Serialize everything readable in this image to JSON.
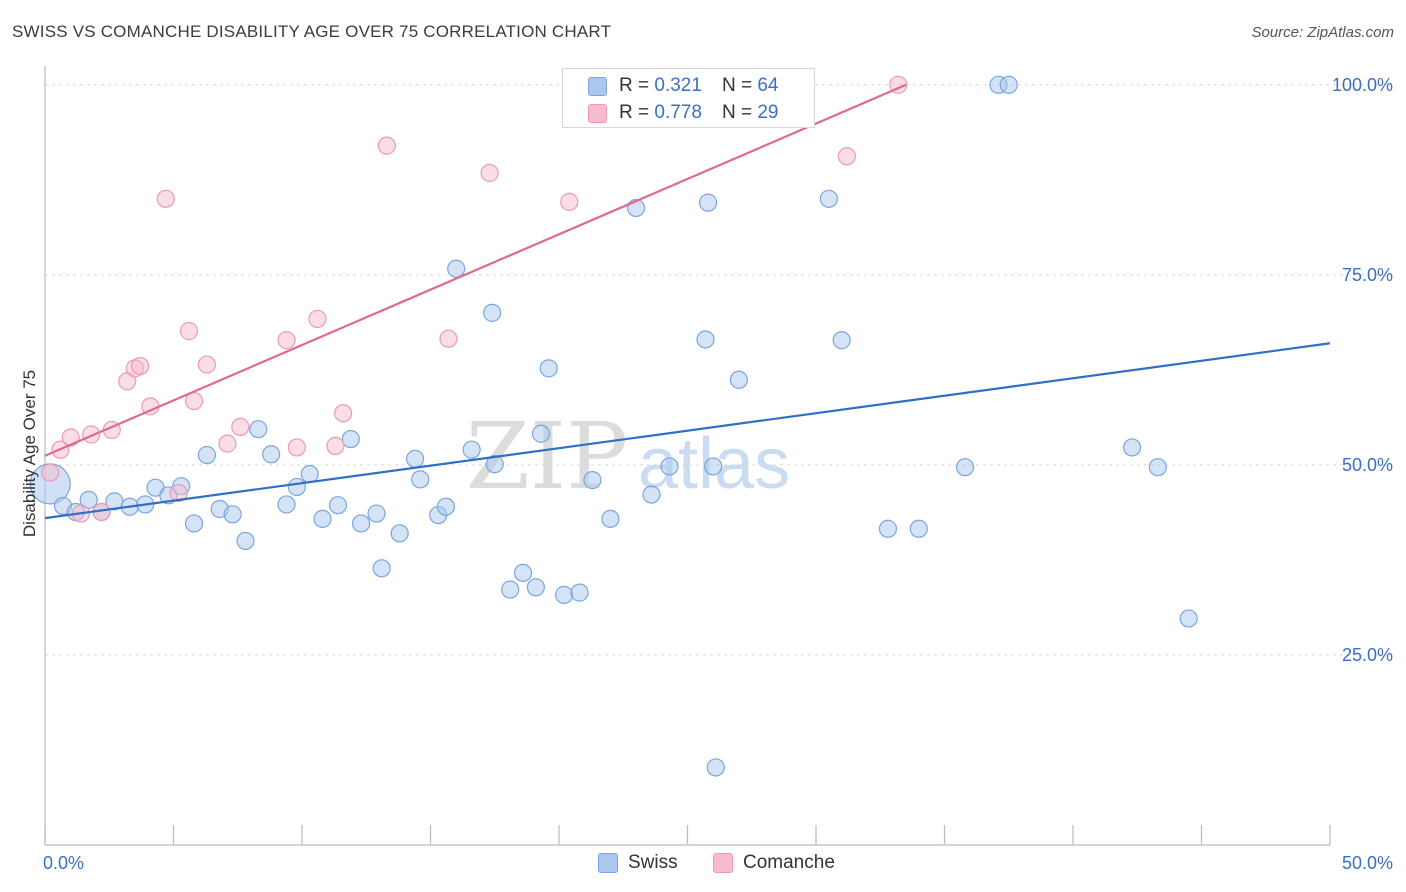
{
  "title": "SWISS VS COMANCHE DISABILITY AGE OVER 75 CORRELATION CHART",
  "source": "Source: ZipAtlas.com",
  "watermark": {
    "zip": "ZIP",
    "atlas": "atlas"
  },
  "legend_box": {
    "rows": [
      {
        "r_label": "R =",
        "r_value": "0.321",
        "n_label": "N =",
        "n_value": "64"
      },
      {
        "r_label": "R =",
        "r_value": "0.778",
        "n_label": "N =",
        "n_value": "29"
      }
    ]
  },
  "legend_bottom": {
    "items": [
      "Swiss",
      "Comanche"
    ]
  },
  "colors": {
    "swiss_fill": "#aac8ee",
    "swiss_stroke": "#7aa6dd",
    "swiss_line": "#2f6fc9",
    "comanche_fill": "#f6bccd",
    "comanche_stroke": "#ec9ab2",
    "comanche_line": "#e06892",
    "tick_label": "#3a6fc4",
    "grid": "#d9d9d9"
  },
  "chart_data": {
    "type": "scatter",
    "title": "SWISS VS COMANCHE DISABILITY AGE OVER 75 CORRELATION CHART",
    "xlabel": "",
    "ylabel": "Disability Age Over 75",
    "xlim": [
      0,
      50
    ],
    "ylim": [
      0,
      103
    ],
    "x_tick_labels": [
      "0.0%",
      "50.0%"
    ],
    "y_ticks": [
      25,
      50,
      75,
      100
    ],
    "y_tick_labels": [
      "25.0%",
      "50.0%",
      "75.0%",
      "100.0%"
    ],
    "grid": true,
    "legend_position": "top-center",
    "series": [
      {
        "name": "Swiss",
        "r": 0.321,
        "n": 64,
        "trend": {
          "x": [
            0,
            50
          ],
          "y": [
            43.0,
            66.0
          ]
        },
        "points": [
          [
            0.2,
            47.5
          ],
          [
            0.7,
            44.6
          ],
          [
            1.2,
            43.8
          ],
          [
            1.7,
            45.4
          ],
          [
            2.2,
            43.8
          ],
          [
            2.7,
            45.2
          ],
          [
            3.3,
            44.5
          ],
          [
            3.9,
            44.8
          ],
          [
            4.3,
            47.0
          ],
          [
            4.8,
            46.0
          ],
          [
            5.3,
            47.2
          ],
          [
            5.8,
            42.3
          ],
          [
            6.3,
            51.3
          ],
          [
            6.8,
            44.2
          ],
          [
            7.3,
            43.5
          ],
          [
            7.8,
            40.0
          ],
          [
            8.3,
            54.7
          ],
          [
            8.8,
            51.4
          ],
          [
            9.4,
            44.8
          ],
          [
            9.8,
            47.1
          ],
          [
            10.3,
            48.8
          ],
          [
            10.8,
            42.9
          ],
          [
            11.4,
            44.7
          ],
          [
            11.9,
            53.4
          ],
          [
            12.3,
            42.3
          ],
          [
            12.9,
            43.6
          ],
          [
            13.1,
            36.4
          ],
          [
            13.8,
            41.0
          ],
          [
            14.4,
            50.8
          ],
          [
            14.6,
            48.1
          ],
          [
            15.3,
            43.4
          ],
          [
            15.6,
            44.5
          ],
          [
            16.0,
            75.8
          ],
          [
            16.6,
            52.0
          ],
          [
            17.4,
            70.0
          ],
          [
            17.5,
            50.1
          ],
          [
            18.1,
            33.6
          ],
          [
            18.6,
            35.8
          ],
          [
            19.1,
            33.9
          ],
          [
            19.3,
            54.1
          ],
          [
            19.6,
            62.7
          ],
          [
            20.2,
            32.9
          ],
          [
            20.8,
            33.2
          ],
          [
            21.3,
            48.0
          ],
          [
            22.0,
            42.9
          ],
          [
            23.0,
            83.8
          ],
          [
            23.6,
            46.1
          ],
          [
            24.3,
            49.8
          ],
          [
            25.7,
            66.5
          ],
          [
            25.8,
            84.5
          ],
          [
            26.0,
            49.8
          ],
          [
            26.1,
            10.2
          ],
          [
            27.0,
            61.2
          ],
          [
            27.8,
            100.0
          ],
          [
            30.5,
            85.0
          ],
          [
            31.0,
            66.4
          ],
          [
            32.8,
            41.6
          ],
          [
            34.0,
            41.6
          ],
          [
            35.8,
            49.7
          ],
          [
            37.1,
            100.0
          ],
          [
            37.5,
            100.0
          ],
          [
            42.3,
            52.3
          ],
          [
            43.3,
            49.7
          ],
          [
            44.5,
            29.8
          ]
        ]
      },
      {
        "name": "Comanche",
        "r": 0.778,
        "n": 29,
        "trend": {
          "x": [
            0,
            33.5
          ],
          "y": [
            51.2,
            100.0
          ]
        },
        "points": [
          [
            0.2,
            49.0
          ],
          [
            0.6,
            52.0
          ],
          [
            1.0,
            53.6
          ],
          [
            1.4,
            43.6
          ],
          [
            1.8,
            54.0
          ],
          [
            2.2,
            43.8
          ],
          [
            2.6,
            54.6
          ],
          [
            3.2,
            61.0
          ],
          [
            3.5,
            62.7
          ],
          [
            3.7,
            63.0
          ],
          [
            4.1,
            57.7
          ],
          [
            4.7,
            85.0
          ],
          [
            5.2,
            46.3
          ],
          [
            5.6,
            67.6
          ],
          [
            5.8,
            58.4
          ],
          [
            6.3,
            63.2
          ],
          [
            7.1,
            52.8
          ],
          [
            7.6,
            55.0
          ],
          [
            9.4,
            66.4
          ],
          [
            9.8,
            52.3
          ],
          [
            10.6,
            69.2
          ],
          [
            11.3,
            52.5
          ],
          [
            11.6,
            56.8
          ],
          [
            13.3,
            92.0
          ],
          [
            15.7,
            66.6
          ],
          [
            17.3,
            88.4
          ],
          [
            20.4,
            84.6
          ],
          [
            31.2,
            90.6
          ],
          [
            33.2,
            100.0
          ]
        ]
      }
    ]
  }
}
